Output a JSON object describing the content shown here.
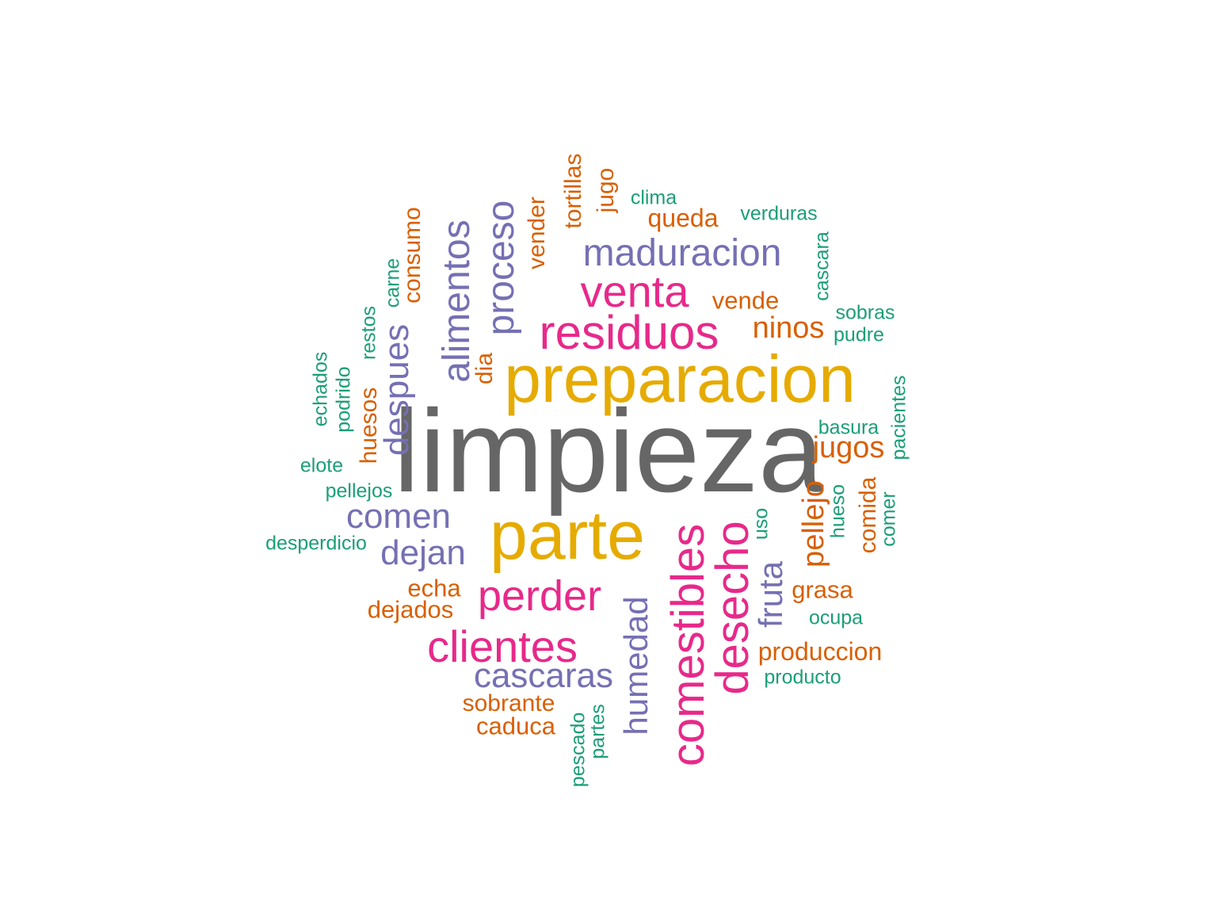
{
  "palette": {
    "gray": "#666666",
    "gold": "#E6AB02",
    "magenta": "#E7298A",
    "purple": "#7570B3",
    "orange": "#D95F02",
    "teal": "#1B9E77"
  },
  "words": [
    {
      "text": "limpieza",
      "color": "gray"
    },
    {
      "text": "preparacion",
      "color": "gold"
    },
    {
      "text": "parte",
      "color": "gold"
    },
    {
      "text": "residuos",
      "color": "magenta"
    },
    {
      "text": "venta",
      "color": "magenta"
    },
    {
      "text": "perder",
      "color": "magenta"
    },
    {
      "text": "clientes",
      "color": "magenta"
    },
    {
      "text": "comestibles",
      "color": "magenta"
    },
    {
      "text": "desecho",
      "color": "magenta"
    },
    {
      "text": "maduracion",
      "color": "purple"
    },
    {
      "text": "proceso",
      "color": "purple"
    },
    {
      "text": "alimentos",
      "color": "purple"
    },
    {
      "text": "despues",
      "color": "purple"
    },
    {
      "text": "comen",
      "color": "purple"
    },
    {
      "text": "dejan",
      "color": "purple"
    },
    {
      "text": "cascaras",
      "color": "purple"
    },
    {
      "text": "humedad",
      "color": "purple"
    },
    {
      "text": "fruta",
      "color": "purple"
    },
    {
      "text": "vender",
      "color": "orange"
    },
    {
      "text": "tortillas",
      "color": "orange"
    },
    {
      "text": "jugo",
      "color": "orange"
    },
    {
      "text": "queda",
      "color": "orange"
    },
    {
      "text": "vende",
      "color": "orange"
    },
    {
      "text": "ninos",
      "color": "orange"
    },
    {
      "text": "consumo",
      "color": "orange"
    },
    {
      "text": "huesos",
      "color": "orange"
    },
    {
      "text": "dia",
      "color": "orange"
    },
    {
      "text": "jugos",
      "color": "orange"
    },
    {
      "text": "pellejo",
      "color": "orange"
    },
    {
      "text": "comida",
      "color": "orange"
    },
    {
      "text": "grasa",
      "color": "orange"
    },
    {
      "text": "produccion",
      "color": "orange"
    },
    {
      "text": "echa",
      "color": "orange"
    },
    {
      "text": "dejados",
      "color": "orange"
    },
    {
      "text": "sobrante",
      "color": "orange"
    },
    {
      "text": "caduca",
      "color": "orange"
    },
    {
      "text": "clima",
      "color": "teal"
    },
    {
      "text": "verduras",
      "color": "teal"
    },
    {
      "text": "cascara",
      "color": "teal"
    },
    {
      "text": "sobras",
      "color": "teal"
    },
    {
      "text": "pudre",
      "color": "teal"
    },
    {
      "text": "carne",
      "color": "teal"
    },
    {
      "text": "restos",
      "color": "teal"
    },
    {
      "text": "echados",
      "color": "teal"
    },
    {
      "text": "podrido",
      "color": "teal"
    },
    {
      "text": "elote",
      "color": "teal"
    },
    {
      "text": "pellejos",
      "color": "teal"
    },
    {
      "text": "desperdicio",
      "color": "teal"
    },
    {
      "text": "basura",
      "color": "teal"
    },
    {
      "text": "pacientes",
      "color": "teal"
    },
    {
      "text": "hueso",
      "color": "teal"
    },
    {
      "text": "comer",
      "color": "teal"
    },
    {
      "text": "uso",
      "color": "teal"
    },
    {
      "text": "ocupa",
      "color": "teal"
    },
    {
      "text": "producto",
      "color": "teal"
    },
    {
      "text": "pescado",
      "color": "teal"
    },
    {
      "text": "partes",
      "color": "teal"
    }
  ]
}
